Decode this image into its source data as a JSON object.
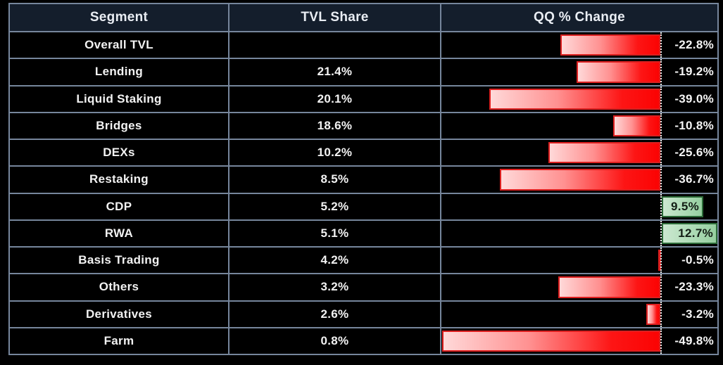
{
  "table": {
    "columns": [
      {
        "label": "Segment"
      },
      {
        "label": "TVL Share"
      },
      {
        "label": "QQ % Change"
      }
    ],
    "rows": [
      {
        "segment": "Overall TVL",
        "tvl_label": "",
        "qq_value": -22.8,
        "qq_label": "-22.8%"
      },
      {
        "segment": "Lending",
        "tvl_label": "21.4%",
        "qq_value": -19.2,
        "qq_label": "-19.2%"
      },
      {
        "segment": "Liquid Staking",
        "tvl_label": "20.1%",
        "qq_value": -39.0,
        "qq_label": "-39.0%"
      },
      {
        "segment": "Bridges",
        "tvl_label": "18.6%",
        "qq_value": -10.8,
        "qq_label": "-10.8%"
      },
      {
        "segment": "DEXs",
        "tvl_label": "10.2%",
        "qq_value": -25.6,
        "qq_label": "-25.6%"
      },
      {
        "segment": "Restaking",
        "tvl_label": "8.5%",
        "qq_value": -36.7,
        "qq_label": "-36.7%"
      },
      {
        "segment": "CDP",
        "tvl_label": "5.2%",
        "qq_value": 9.5,
        "qq_label": "9.5%"
      },
      {
        "segment": "RWA",
        "tvl_label": "5.1%",
        "qq_value": 12.7,
        "qq_label": "12.7%"
      },
      {
        "segment": "Basis Trading",
        "tvl_label": "4.2%",
        "qq_value": -0.5,
        "qq_label": "-0.5%"
      },
      {
        "segment": "Others",
        "tvl_label": "3.2%",
        "qq_value": -23.3,
        "qq_label": "-23.3%"
      },
      {
        "segment": "Derivatives",
        "tvl_label": "2.6%",
        "qq_value": -3.2,
        "qq_label": "-3.2%"
      },
      {
        "segment": "Farm",
        "tvl_label": "0.8%",
        "qq_value": -49.8,
        "qq_label": "-49.8%"
      }
    ]
  },
  "colors": {
    "page_background": "#000000",
    "header_background": "#141e2c",
    "grid_line": "#76869c",
    "text": "#f2f2f2",
    "negative_bar_light": "#ffd9d9",
    "negative_bar_strong": "#fb0303",
    "negative_bar_border": "#dd2020",
    "positive_bar_light": "#cbe8d0",
    "positive_bar_strong": "#96cfa0",
    "positive_bar_border": "#2c6b38",
    "baseline_dotted": "#ececec"
  },
  "chart_data": {
    "type": "bar",
    "orientation": "horizontal",
    "title": "",
    "categories": [
      "Overall TVL",
      "Lending",
      "Liquid Staking",
      "Bridges",
      "DEXs",
      "Restaking",
      "CDP",
      "RWA",
      "Basis Trading",
      "Others",
      "Derivatives",
      "Farm"
    ],
    "series": [
      {
        "name": "TVL Share",
        "unit": "%",
        "values": [
          null,
          21.4,
          20.1,
          18.6,
          10.2,
          8.5,
          5.2,
          5.1,
          4.2,
          3.2,
          2.6,
          0.8
        ]
      },
      {
        "name": "QQ % Change",
        "unit": "%",
        "values": [
          -22.8,
          -19.2,
          -39.0,
          -10.8,
          -25.6,
          -36.7,
          9.5,
          12.7,
          -0.5,
          -23.3,
          -3.2,
          -49.8
        ]
      }
    ],
    "xlim": [
      -50,
      13
    ],
    "grid": false,
    "legend_position": "none",
    "notes": "Table with in-cell data bars; negative QQ bars red gradient extending left of dotted zero baseline, positive QQ bars green extending right with label inside"
  }
}
